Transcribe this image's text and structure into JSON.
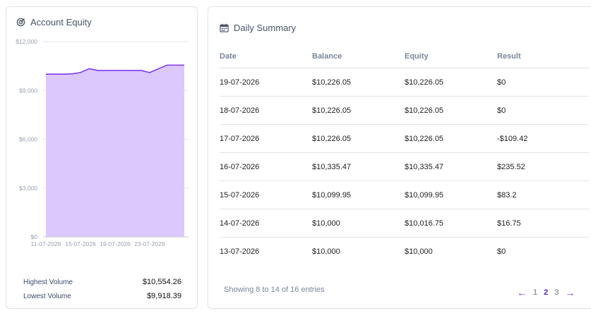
{
  "equity": {
    "title": "Account Equity",
    "icon": "target-icon",
    "stats": [
      {
        "label": "Highest Volume",
        "value": "$10,554.26"
      },
      {
        "label": "Lowest Volume",
        "value": "$9,918.39"
      }
    ]
  },
  "chart_data": {
    "type": "area",
    "title": "",
    "xlabel": "",
    "ylabel": "",
    "ylim": [
      0,
      12000
    ],
    "y_ticks": [
      "$0",
      "$3,000",
      "$6,000",
      "$9,000",
      "$12,000"
    ],
    "x_ticks": [
      "11-07-2026",
      "15-07-2026",
      "19-07-2026",
      "23-07-2026"
    ],
    "x": [
      "11-07-2026",
      "12-07-2026",
      "13-07-2026",
      "14-07-2026",
      "15-07-2026",
      "16-07-2026",
      "17-07-2026",
      "18-07-2026",
      "19-07-2026",
      "20-07-2026",
      "21-07-2026",
      "22-07-2026",
      "23-07-2026",
      "24-07-2026",
      "25-07-2026",
      "26-07-2026",
      "27-07-2026"
    ],
    "series": [
      {
        "values": [
          10000,
          10000,
          10000,
          10016.75,
          10099.95,
          10335.47,
          10226.05,
          10226.05,
          10226.05,
          10226.05,
          10226.05,
          10226.05,
          10100,
          10330,
          10554.26,
          10554.26,
          10554.26
        ]
      }
    ],
    "grid": true,
    "fill_color": "#dcc8fd",
    "line_color": "#7c3aed"
  },
  "summary": {
    "title": "Daily Summary",
    "icon": "calendar-icon",
    "columns": [
      "Date",
      "Balance",
      "Equity",
      "Result"
    ],
    "rows": [
      [
        "19-07-2026",
        "$10,226.05",
        "$10,226.05",
        "$0"
      ],
      [
        "18-07-2026",
        "$10,226.05",
        "$10,226.05",
        "$0"
      ],
      [
        "17-07-2026",
        "$10,226.05",
        "$10,226.05",
        "-$109.42"
      ],
      [
        "16-07-2026",
        "$10,335.47",
        "$10,335.47",
        "$235.52"
      ],
      [
        "15-07-2026",
        "$10,099.95",
        "$10,099.95",
        "$83.2"
      ],
      [
        "14-07-2026",
        "$10,000",
        "$10,016.75",
        "$16.75"
      ],
      [
        "13-07-2026",
        "$10,000",
        "$10,000",
        "$0"
      ]
    ],
    "footer": "Showing 8 to 14 of 16 entries",
    "pagination": {
      "pages": [
        "1",
        "2",
        "3"
      ],
      "current": "2",
      "prev": "←",
      "next": "→"
    }
  },
  "colors": {
    "accent": "#7c3aed",
    "chart_fill": "#dcc8fd"
  }
}
